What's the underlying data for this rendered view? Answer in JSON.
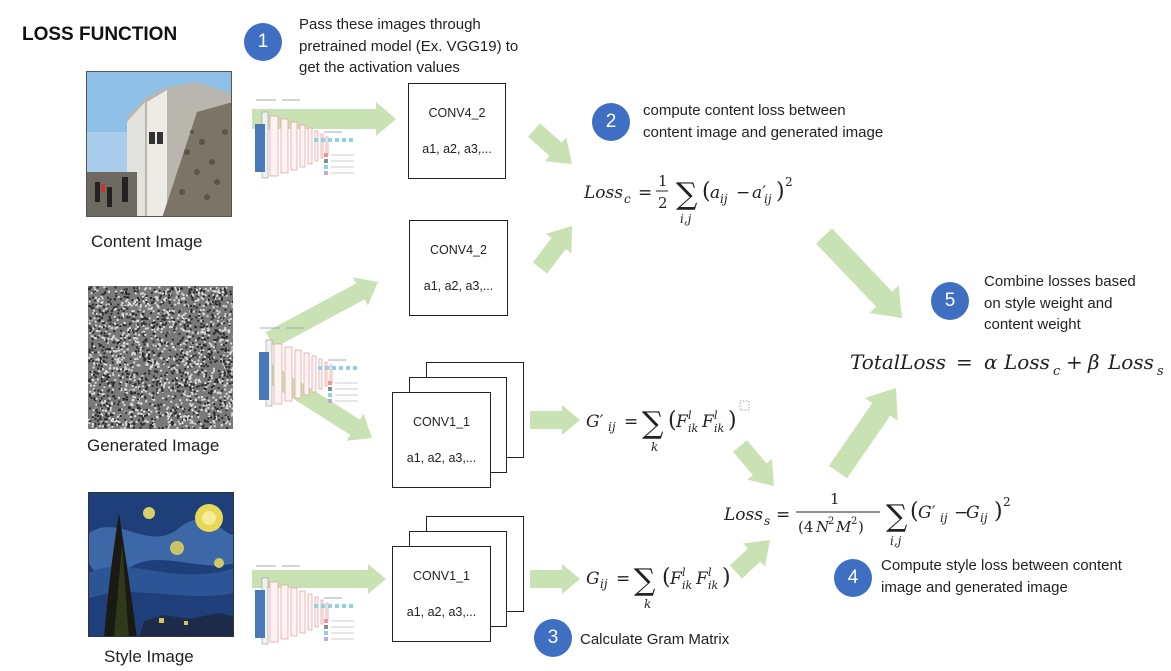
{
  "title": "LOSS FUNCTION",
  "images": {
    "content": "Content Image",
    "generated": "Generated Image",
    "style": "Style Image"
  },
  "steps": [
    {
      "number": "1",
      "text": "Pass these images through\npretrained model (Ex. VGG19) to\nget the activation values"
    },
    {
      "number": "2",
      "text": "compute content loss between\ncontent image and generated image"
    },
    {
      "number": "3",
      "text": "Calculate Gram Matrix"
    },
    {
      "number": "4",
      "text": "Compute style loss between content\nimage and generated image"
    },
    {
      "number": "5",
      "text": "Combine losses based\non style weight and\ncontent weight"
    }
  ],
  "boxes": {
    "content_layer": {
      "name": "CONV4_2",
      "values": "a1, a2, a3,..."
    },
    "generated_content_layer": {
      "name": "CONV4_2",
      "values": "a1, a2, a3,..."
    },
    "generated_style_layer": {
      "name": "CONV1_1",
      "values": "a1, a2, a3,..."
    },
    "style_layer": {
      "name": "CONV1_1",
      "values": "a1, a2, a3,..."
    }
  },
  "colors": {
    "arrow": "#c9e2b3",
    "badge": "#3f6fc2"
  }
}
